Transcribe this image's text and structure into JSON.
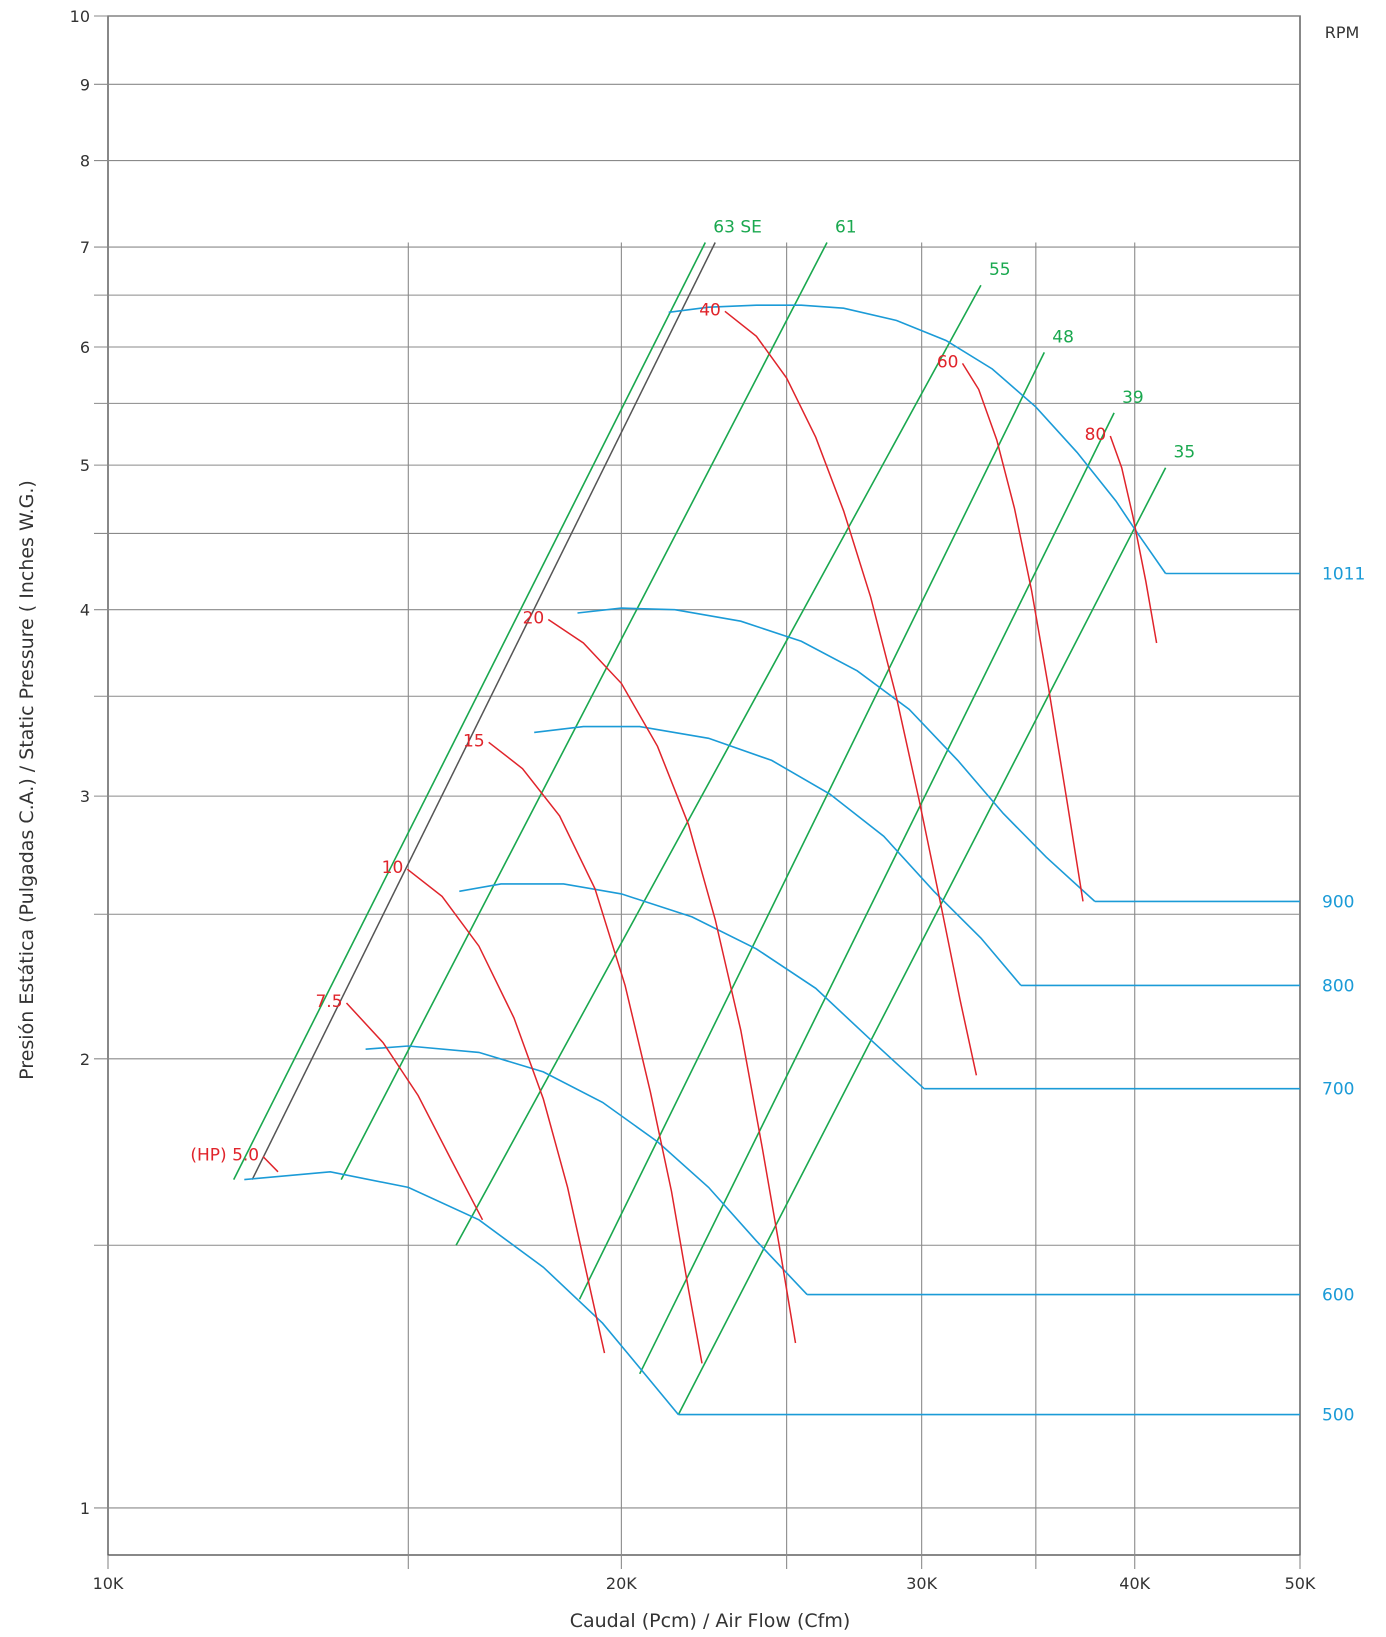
{
  "chart_data": {
    "type": "line",
    "title": "",
    "xlabel": "Caudal (Pcm) / Air Flow (Cfm)",
    "ylabel": "Presión Estática (Pulgadas C.A.)  /  Static Pressure ( Inches W.G.)",
    "xscale": "log",
    "yscale": "log",
    "xlim": [
      10000,
      50000
    ],
    "ylim": [
      0.93,
      10
    ],
    "x_ticks": [
      {
        "value": 10000,
        "label": "10K"
      },
      {
        "value": 20000,
        "label": "20K"
      },
      {
        "value": 30000,
        "label": "30K"
      },
      {
        "value": 40000,
        "label": "40K"
      },
      {
        "value": 50000,
        "label": "50K"
      }
    ],
    "x_minor_ticks": [
      15000,
      25000,
      35000
    ],
    "y_ticks": [
      {
        "value": 1,
        "label": "1"
      },
      {
        "value": 2,
        "label": "2"
      },
      {
        "value": 3,
        "label": "3"
      },
      {
        "value": 4,
        "label": "4"
      },
      {
        "value": 5,
        "label": "5"
      },
      {
        "value": 6,
        "label": "6"
      },
      {
        "value": 7,
        "label": "7"
      },
      {
        "value": 8,
        "label": "8"
      },
      {
        "value": 9,
        "label": "9"
      },
      {
        "value": 10,
        "label": "10"
      }
    ],
    "y_minor_grid": [
      1.5,
      2.5,
      3.5,
      4.5,
      5.5,
      6.5
    ],
    "x_gridlines": [
      15000,
      20000,
      25000,
      30000,
      35000,
      40000
    ],
    "right_axis_label": "RPM",
    "rpm_curves": [
      {
        "name": "500",
        "points": [
          [
            12020,
            1.66
          ],
          [
            13500,
            1.68
          ],
          [
            15000,
            1.64
          ],
          [
            16500,
            1.56
          ],
          [
            18000,
            1.45
          ],
          [
            19500,
            1.33
          ],
          [
            20400,
            1.25
          ],
          [
            21600,
            1.155
          ]
        ],
        "hline": [
          [
            21600,
            1.155
          ],
          [
            50000,
            1.155
          ]
        ]
      },
      {
        "name": "600",
        "points": [
          [
            14160,
            2.03
          ],
          [
            15000,
            2.04
          ],
          [
            16500,
            2.02
          ],
          [
            18000,
            1.96
          ],
          [
            19500,
            1.87
          ],
          [
            21000,
            1.76
          ],
          [
            22500,
            1.64
          ],
          [
            24000,
            1.51
          ],
          [
            25700,
            1.39
          ]
        ],
        "hline": [
          [
            25700,
            1.39
          ],
          [
            50000,
            1.39
          ]
        ]
      },
      {
        "name": "700",
        "points": [
          [
            16070,
            2.59
          ],
          [
            17000,
            2.62
          ],
          [
            18500,
            2.62
          ],
          [
            20000,
            2.58
          ],
          [
            22000,
            2.49
          ],
          [
            24000,
            2.37
          ],
          [
            26000,
            2.23
          ],
          [
            28000,
            2.06
          ],
          [
            30100,
            1.91
          ]
        ],
        "hline": [
          [
            30100,
            1.91
          ],
          [
            50000,
            1.91
          ]
        ]
      },
      {
        "name": "800",
        "points": [
          [
            17780,
            3.31
          ],
          [
            19000,
            3.34
          ],
          [
            20500,
            3.34
          ],
          [
            22500,
            3.28
          ],
          [
            24500,
            3.17
          ],
          [
            26500,
            3.01
          ],
          [
            28500,
            2.82
          ],
          [
            30500,
            2.59
          ],
          [
            32500,
            2.41
          ],
          [
            34300,
            2.24
          ]
        ],
        "hline": [
          [
            34300,
            2.24
          ],
          [
            50000,
            2.24
          ]
        ]
      },
      {
        "name": "900",
        "points": [
          [
            18850,
            3.98
          ],
          [
            20000,
            4.01
          ],
          [
            21500,
            4.0
          ],
          [
            23500,
            3.93
          ],
          [
            25500,
            3.81
          ],
          [
            27500,
            3.64
          ],
          [
            29500,
            3.43
          ],
          [
            31500,
            3.17
          ],
          [
            33500,
            2.92
          ],
          [
            35500,
            2.73
          ],
          [
            37900,
            2.55
          ]
        ],
        "hline": [
          [
            37900,
            2.55
          ],
          [
            50000,
            2.55
          ]
        ]
      },
      {
        "name": "1011",
        "points": [
          [
            21320,
            6.33
          ],
          [
            22500,
            6.38
          ],
          [
            24000,
            6.4
          ],
          [
            25500,
            6.4
          ],
          [
            27000,
            6.37
          ],
          [
            29000,
            6.25
          ],
          [
            31000,
            6.06
          ],
          [
            33000,
            5.8
          ],
          [
            35000,
            5.47
          ],
          [
            37000,
            5.1
          ],
          [
            39000,
            4.73
          ],
          [
            40000,
            4.53
          ],
          [
            41700,
            4.23
          ]
        ],
        "hline": [
          [
            41700,
            4.23
          ],
          [
            50000,
            4.23
          ]
        ]
      }
    ],
    "rpm_labels": [
      "500",
      "600",
      "700",
      "800",
      "900",
      "1011"
    ],
    "efficiency_lines": [
      {
        "name": "63 SE",
        "points": [
          [
            11850,
            1.66
          ],
          [
            22400,
            7.05
          ]
        ]
      },
      {
        "name": "61",
        "points": [
          [
            13700,
            1.66
          ],
          [
            26400,
            7.05
          ]
        ]
      },
      {
        "name": "55",
        "points": [
          [
            16000,
            1.5
          ],
          [
            32500,
            6.6
          ]
        ]
      },
      {
        "name": "48",
        "points": [
          [
            18900,
            1.38
          ],
          [
            35400,
            5.95
          ]
        ]
      },
      {
        "name": "39",
        "points": [
          [
            20500,
            1.23
          ],
          [
            38900,
            5.42
          ]
        ]
      },
      {
        "name": "35",
        "points": [
          [
            21600,
            1.155
          ],
          [
            41700,
            4.98
          ]
        ]
      }
    ],
    "system_line": {
      "points": [
        [
          12150,
          1.66
        ],
        [
          22700,
          7.05
        ]
      ]
    },
    "hp_curves": [
      {
        "name": "(HP) 5.0",
        "points": [
          [
            12330,
            1.72
          ],
          [
            12580,
            1.68
          ]
        ]
      },
      {
        "name": "7.5",
        "points": [
          [
            13800,
            2.18
          ],
          [
            14500,
            2.05
          ],
          [
            15200,
            1.89
          ],
          [
            15900,
            1.71
          ],
          [
            16580,
            1.56
          ]
        ]
      },
      {
        "name": "10",
        "points": [
          [
            14980,
            2.68
          ],
          [
            15700,
            2.57
          ],
          [
            16500,
            2.38
          ],
          [
            17300,
            2.13
          ],
          [
            18000,
            1.88
          ],
          [
            18600,
            1.64
          ],
          [
            19100,
            1.43
          ],
          [
            19550,
            1.27
          ]
        ]
      },
      {
        "name": "15",
        "points": [
          [
            16720,
            3.26
          ],
          [
            17500,
            3.13
          ],
          [
            18400,
            2.91
          ],
          [
            19300,
            2.6
          ],
          [
            20100,
            2.24
          ],
          [
            20800,
            1.9
          ],
          [
            21400,
            1.63
          ],
          [
            21900,
            1.4
          ],
          [
            22300,
            1.25
          ]
        ]
      },
      {
        "name": "20",
        "points": [
          [
            18120,
            3.94
          ],
          [
            19000,
            3.8
          ],
          [
            20000,
            3.57
          ],
          [
            21000,
            3.24
          ],
          [
            21900,
            2.87
          ],
          [
            22700,
            2.48
          ],
          [
            23500,
            2.09
          ],
          [
            24200,
            1.74
          ],
          [
            24800,
            1.48
          ],
          [
            25300,
            1.29
          ]
        ]
      },
      {
        "name": "40",
        "points": [
          [
            23000,
            6.34
          ],
          [
            24000,
            6.1
          ],
          [
            25000,
            5.72
          ],
          [
            26000,
            5.22
          ],
          [
            27000,
            4.66
          ],
          [
            28000,
            4.08
          ],
          [
            29000,
            3.49
          ],
          [
            29900,
            2.98
          ],
          [
            30800,
            2.53
          ],
          [
            31600,
            2.19
          ],
          [
            32300,
            1.95
          ]
        ]
      },
      {
        "name": "60",
        "points": [
          [
            31700,
            5.85
          ],
          [
            32400,
            5.62
          ],
          [
            33200,
            5.2
          ],
          [
            34000,
            4.68
          ],
          [
            34800,
            4.12
          ],
          [
            35600,
            3.55
          ],
          [
            36500,
            2.98
          ],
          [
            37300,
            2.55
          ]
        ]
      },
      {
        "name": "80",
        "points": [
          [
            38700,
            5.23
          ],
          [
            39300,
            4.98
          ],
          [
            39900,
            4.62
          ],
          [
            40600,
            4.18
          ],
          [
            41200,
            3.8
          ]
        ]
      }
    ]
  }
}
